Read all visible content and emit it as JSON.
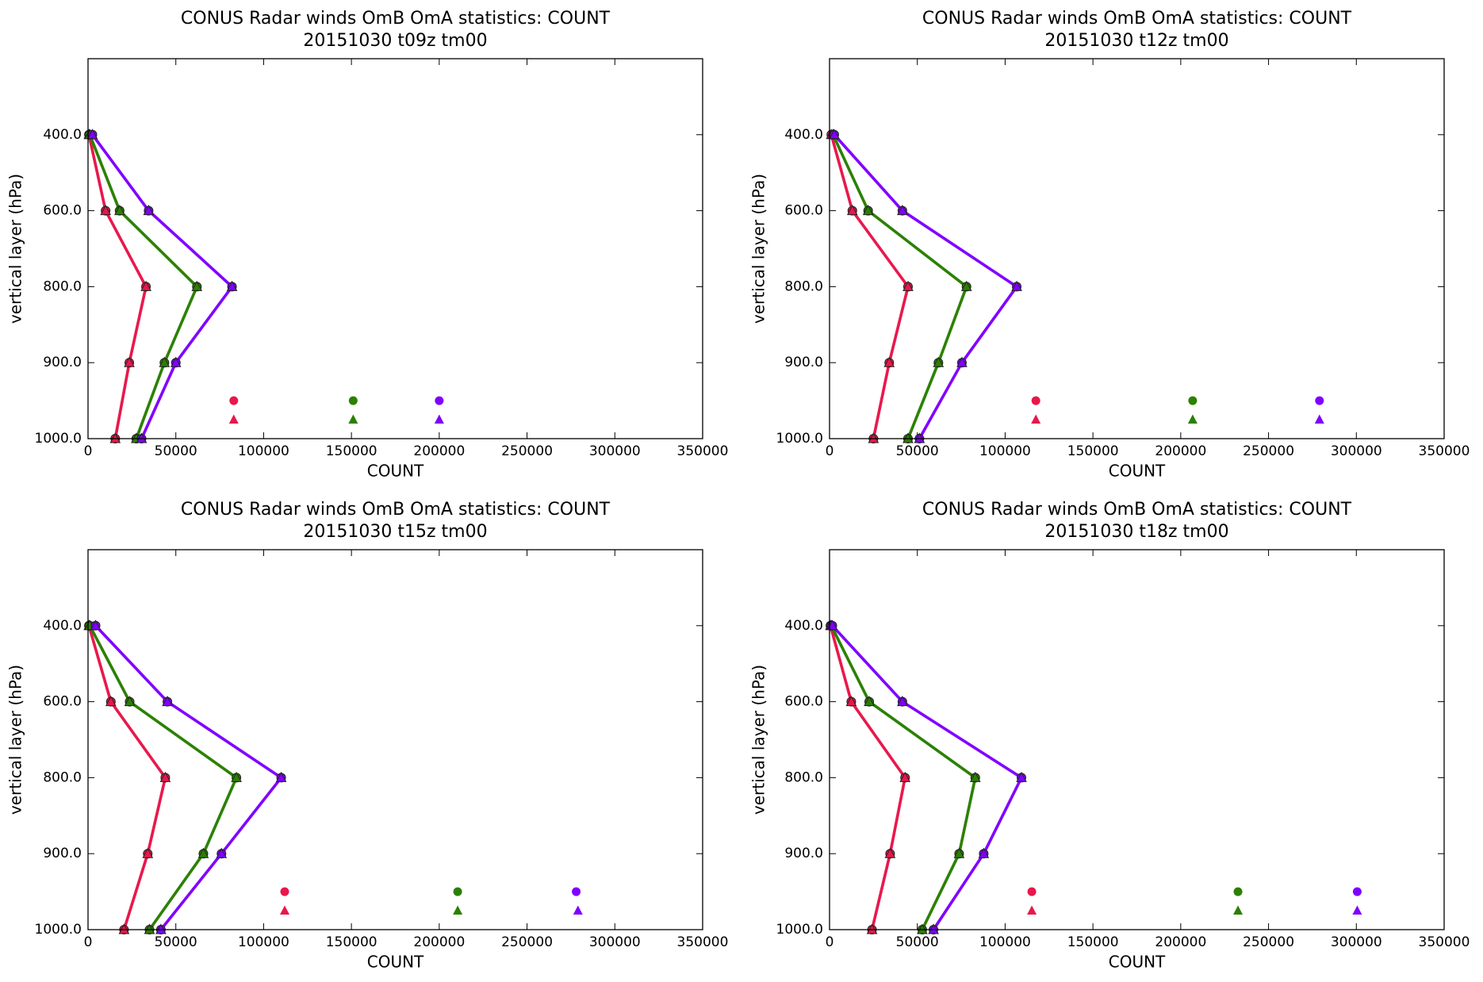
{
  "chart_data": [
    {
      "type": "line",
      "title": "CONUS Radar winds OmB OmA statistics: COUNT",
      "subtitle": "20151030 t09z tm00",
      "xlabel": "COUNT",
      "ylabel": "vertical layer (hPa)",
      "levels": [
        "400.0",
        "600.0",
        "800.0",
        "900.0",
        "1000.0"
      ],
      "xlim": [
        0,
        350000
      ],
      "xticks": [
        0,
        50000,
        100000,
        150000,
        200000,
        250000,
        300000,
        350000
      ],
      "series": [
        {
          "color": "#e8174b",
          "marker": "circle",
          "values": [
            500,
            10000,
            33000,
            23500,
            15500
          ],
          "total": 83000
        },
        {
          "color": "#e8174b",
          "marker": "triangle",
          "values": [
            500,
            10000,
            33000,
            23500,
            15500
          ],
          "total": 83000
        },
        {
          "color": "#2a8000",
          "marker": "circle",
          "values": [
            1000,
            18000,
            62000,
            43500,
            27500
          ],
          "total": 151000
        },
        {
          "color": "#2a8000",
          "marker": "triangle",
          "values": [
            1000,
            18000,
            62000,
            43500,
            27500
          ],
          "total": 151000
        },
        {
          "color": "#8000ff",
          "marker": "circle",
          "values": [
            2500,
            34500,
            82000,
            50000,
            30500
          ],
          "total": 200000
        },
        {
          "color": "#8000ff",
          "marker": "triangle",
          "values": [
            2500,
            34500,
            82000,
            50000,
            30500
          ],
          "total": 200000
        }
      ]
    },
    {
      "type": "line",
      "title": "CONUS Radar winds OmB OmA statistics: COUNT",
      "subtitle": "20151030 t12z tm00",
      "xlabel": "COUNT",
      "ylabel": "vertical layer (hPa)",
      "levels": [
        "400.0",
        "600.0",
        "800.0",
        "900.0",
        "1000.0"
      ],
      "xlim": [
        0,
        350000
      ],
      "xticks": [
        0,
        50000,
        100000,
        150000,
        200000,
        250000,
        300000,
        350000
      ],
      "series": [
        {
          "color": "#e8174b",
          "marker": "circle",
          "values": [
            1000,
            13000,
            44700,
            34000,
            25000
          ],
          "total": 117500
        },
        {
          "color": "#e8174b",
          "marker": "triangle",
          "values": [
            1000,
            13000,
            44700,
            34000,
            25000
          ],
          "total": 117500
        },
        {
          "color": "#2a8000",
          "marker": "circle",
          "values": [
            2000,
            22000,
            78000,
            62000,
            44700
          ],
          "total": 206800
        },
        {
          "color": "#2a8000",
          "marker": "triangle",
          "values": [
            2000,
            22000,
            78000,
            62000,
            44700
          ],
          "total": 206800
        },
        {
          "color": "#8000ff",
          "marker": "circle",
          "values": [
            2700,
            41500,
            106600,
            75400,
            51200
          ],
          "total": 279000
        },
        {
          "color": "#8000ff",
          "marker": "triangle",
          "values": [
            2700,
            41500,
            106600,
            75400,
            51200
          ],
          "total": 279000
        }
      ]
    },
    {
      "type": "line",
      "title": "CONUS Radar winds OmB OmA statistics: COUNT",
      "subtitle": "20151030 t15z tm00",
      "xlabel": "COUNT",
      "ylabel": "vertical layer (hPa)",
      "levels": [
        "400.0",
        "600.0",
        "800.0",
        "900.0",
        "1000.0"
      ],
      "xlim": [
        0,
        350000
      ],
      "xticks": [
        0,
        50000,
        100000,
        150000,
        200000,
        250000,
        300000,
        350000
      ],
      "series": [
        {
          "color": "#e8174b",
          "marker": "circle",
          "values": [
            500,
            13000,
            44000,
            34000,
            20500
          ],
          "total": 112000
        },
        {
          "color": "#e8174b",
          "marker": "triangle",
          "values": [
            500,
            13000,
            44000,
            34000,
            20500
          ],
          "total": 112000
        },
        {
          "color": "#2a8000",
          "marker": "circle",
          "values": [
            1000,
            23700,
            84500,
            65700,
            35000
          ],
          "total": 210500
        },
        {
          "color": "#2a8000",
          "marker": "triangle",
          "values": [
            1000,
            23700,
            84500,
            65700,
            35000
          ],
          "total": 210500
        },
        {
          "color": "#8000ff",
          "marker": "circle",
          "values": [
            4300,
            45200,
            110000,
            76000,
            41500
          ],
          "total": 278000
        },
        {
          "color": "#8000ff",
          "marker": "triangle",
          "values": [
            4300,
            45200,
            110000,
            76000,
            41500
          ],
          "total": 279000
        }
      ]
    },
    {
      "type": "line",
      "title": "CONUS Radar winds OmB OmA statistics: COUNT",
      "subtitle": "20151030 t18z tm00",
      "xlabel": "COUNT",
      "ylabel": "vertical layer (hPa)",
      "levels": [
        "400.0",
        "600.0",
        "800.0",
        "900.0",
        "1000.0"
      ],
      "xlim": [
        0,
        350000
      ],
      "xticks": [
        0,
        50000,
        100000,
        150000,
        200000,
        250000,
        300000,
        350000
      ],
      "series": [
        {
          "color": "#e8174b",
          "marker": "circle",
          "values": [
            500,
            12400,
            43000,
            34500,
            24200
          ],
          "total": 115200
        },
        {
          "color": "#e8174b",
          "marker": "triangle",
          "values": [
            500,
            12400,
            43000,
            34500,
            24200
          ],
          "total": 115200
        },
        {
          "color": "#2a8000",
          "marker": "circle",
          "values": [
            1000,
            22600,
            83000,
            73800,
            52800
          ],
          "total": 232600
        },
        {
          "color": "#2a8000",
          "marker": "triangle",
          "values": [
            1000,
            22600,
            83000,
            73800,
            52800
          ],
          "total": 232600
        },
        {
          "color": "#8000ff",
          "marker": "circle",
          "values": [
            1600,
            41500,
            109300,
            87800,
            59200
          ],
          "total": 300500
        },
        {
          "color": "#8000ff",
          "marker": "triangle",
          "values": [
            1600,
            41500,
            109300,
            87800,
            59200
          ],
          "total": 300500
        }
      ]
    }
  ]
}
